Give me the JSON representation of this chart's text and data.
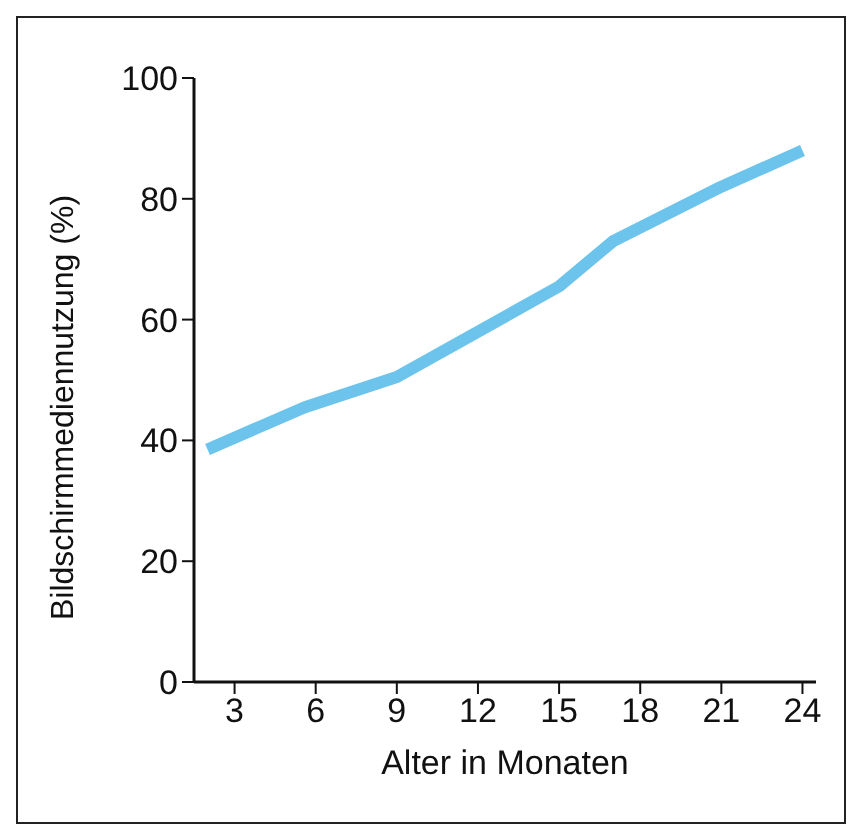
{
  "chart_data": {
    "type": "line",
    "xlabel": "Alter in Monaten",
    "ylabel": "Bildschirmmediennutzung (%)",
    "x": [
      2,
      5.6,
      9,
      12,
      15,
      17,
      21,
      24
    ],
    "series": [
      {
        "color": "#6cc4ec",
        "values": [
          38.5,
          45.5,
          50.5,
          58,
          65.5,
          73,
          82,
          88
        ]
      }
    ],
    "xlim": [
      1.5,
      24.5
    ],
    "xticks": [
      3,
      6,
      9,
      12,
      15,
      18,
      21,
      24
    ],
    "ylim": [
      0,
      100
    ],
    "yticks": [
      0,
      20,
      40,
      60,
      80,
      100
    ],
    "grid": false,
    "legend": false,
    "marker": "none",
    "line_style": "solid"
  }
}
